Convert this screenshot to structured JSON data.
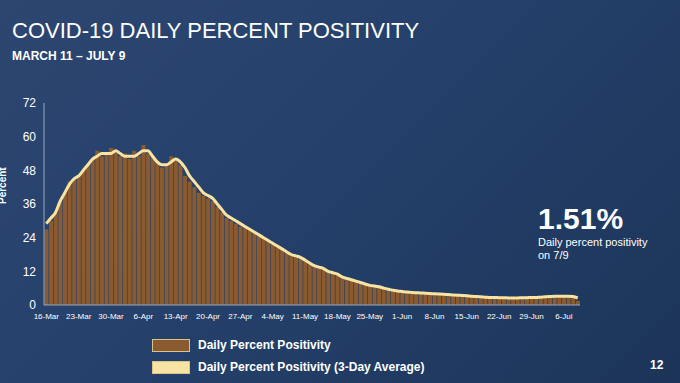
{
  "chart_data": {
    "type": "bar",
    "title": "COVID-19 DAILY PERCENT POSITIVITY",
    "subtitle": "MARCH 11 – JULY 9",
    "y_label": "Percent",
    "categories": [
      "16-Mar",
      null,
      null,
      null,
      null,
      null,
      null,
      "23-Mar",
      null,
      null,
      null,
      null,
      null,
      null,
      "30-Mar",
      null,
      null,
      null,
      null,
      null,
      null,
      "6-Apr",
      null,
      null,
      null,
      null,
      null,
      null,
      "13-Apr",
      null,
      null,
      null,
      null,
      null,
      null,
      "20-Apr",
      null,
      null,
      null,
      null,
      null,
      null,
      "27-Apr",
      null,
      null,
      null,
      null,
      null,
      null,
      "4-May",
      null,
      null,
      null,
      null,
      null,
      null,
      "11-May",
      null,
      null,
      null,
      null,
      null,
      null,
      "18-May",
      null,
      null,
      null,
      null,
      null,
      null,
      "25-May",
      null,
      null,
      null,
      null,
      null,
      null,
      "1-Jun",
      null,
      null,
      null,
      null,
      null,
      null,
      "8-Jun",
      null,
      null,
      null,
      null,
      null,
      null,
      "15-Jun",
      null,
      null,
      null,
      null,
      null,
      null,
      "22-Jun",
      null,
      null,
      null,
      null,
      null,
      null,
      "29-Jun",
      null,
      null,
      null,
      null,
      null,
      null,
      "6-Jul",
      null,
      null,
      null
    ],
    "series": [
      {
        "name": "Daily Percent Positivity",
        "type": "bar",
        "color": "#8a5a30",
        "values": [
          27,
          30,
          33,
          37,
          40,
          44,
          45,
          46,
          48,
          50,
          52,
          55,
          53,
          54,
          56,
          55,
          53,
          54,
          52,
          55,
          53,
          57,
          54,
          53,
          51,
          49,
          50,
          53,
          52,
          50,
          46,
          44,
          42,
          40,
          39,
          38,
          37,
          35,
          33,
          31,
          30,
          29,
          28,
          28,
          27,
          26,
          25,
          24,
          23,
          22,
          21,
          20,
          19,
          18,
          17,
          17,
          16,
          15,
          14,
          13,
          12.5,
          12,
          11,
          10.5,
          10,
          9.5,
          9,
          8.5,
          8,
          7.5,
          7,
          6.5,
          6.5,
          6,
          5.5,
          5.2,
          5,
          4.8,
          4.6,
          4.5,
          4.4,
          4.3,
          4.2,
          4.1,
          4.0,
          3.9,
          3.8,
          3.7,
          3.6,
          3.5,
          3.4,
          3.2,
          3.1,
          3.0,
          2.9,
          2.8,
          2.7,
          2.6,
          2.6,
          2.5,
          2.5,
          2.6,
          2.5,
          2.6,
          2.7,
          2.6,
          2.8,
          2.9,
          3.0,
          3.1,
          3.2,
          3.0,
          3.1,
          3.3,
          2.6,
          1.51
        ]
      },
      {
        "name": "Daily Percent Positivity (3-Day Average)",
        "type": "line",
        "color": "#f7e4a2",
        "values": [
          29,
          31,
          33,
          37,
          40,
          43,
          45,
          46,
          48,
          50,
          52,
          53,
          54,
          54,
          54,
          55,
          54,
          53,
          53,
          53,
          54,
          55,
          55,
          53,
          51,
          50,
          50,
          51,
          52,
          51,
          49,
          46,
          44,
          42,
          40,
          39,
          38,
          36,
          34,
          32,
          31,
          30,
          29,
          28,
          27,
          26,
          25,
          24,
          23,
          22,
          21,
          20,
          19,
          18,
          17.5,
          17,
          16,
          15,
          14,
          13.5,
          13,
          12,
          11.5,
          11,
          10,
          9.5,
          9,
          8.5,
          8,
          7.5,
          7,
          6.8,
          6.5,
          6,
          5.6,
          5.3,
          5,
          4.8,
          4.6,
          4.5,
          4.4,
          4.3,
          4.2,
          4.1,
          4,
          3.9,
          3.8,
          3.7,
          3.6,
          3.5,
          3.4,
          3.3,
          3.1,
          3,
          2.9,
          2.8,
          2.7,
          2.7,
          2.6,
          2.6,
          2.5,
          2.5,
          2.5,
          2.6,
          2.6,
          2.7,
          2.7,
          2.8,
          2.9,
          3,
          3.1,
          3.1,
          3.1,
          3.1,
          3,
          2.5
        ]
      }
    ],
    "ylim": [
      0,
      72
    ],
    "yticks": [
      0,
      12,
      24,
      36,
      48,
      60,
      72
    ],
    "grid": false,
    "legend": "bottom",
    "annotation": {
      "value": 1.51,
      "label": "1.51%",
      "text": "Daily percent positivity on 7/9"
    },
    "page_number": "12"
  }
}
